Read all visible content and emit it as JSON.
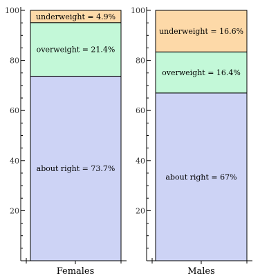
{
  "chart_data": [
    {
      "type": "bar",
      "stacked": true,
      "categories": [
        "Females"
      ],
      "ylim": [
        0,
        100
      ],
      "yticks": [
        20,
        40,
        60,
        80,
        100
      ],
      "segments": [
        {
          "label": "about right = 73.7%",
          "value": 73.7,
          "color": "#cdd3f5"
        },
        {
          "label": "overweight = 21.4%",
          "value": 21.4,
          "color": "#c3f8d8"
        },
        {
          "label": "underweight = 4.9%",
          "value": 4.9,
          "color": "#fdd9a8"
        }
      ]
    },
    {
      "type": "bar",
      "stacked": true,
      "categories": [
        "Males"
      ],
      "ylim": [
        0,
        100
      ],
      "yticks": [
        20,
        40,
        60,
        80,
        100
      ],
      "segments": [
        {
          "label": "about right = 67%",
          "value": 67,
          "color": "#cdd3f5"
        },
        {
          "label": "overweight = 16.4%",
          "value": 16.4,
          "color": "#c3f8d8"
        },
        {
          "label": "underweight = 16.6%",
          "value": 16.6,
          "color": "#fdd9a8"
        }
      ]
    }
  ]
}
